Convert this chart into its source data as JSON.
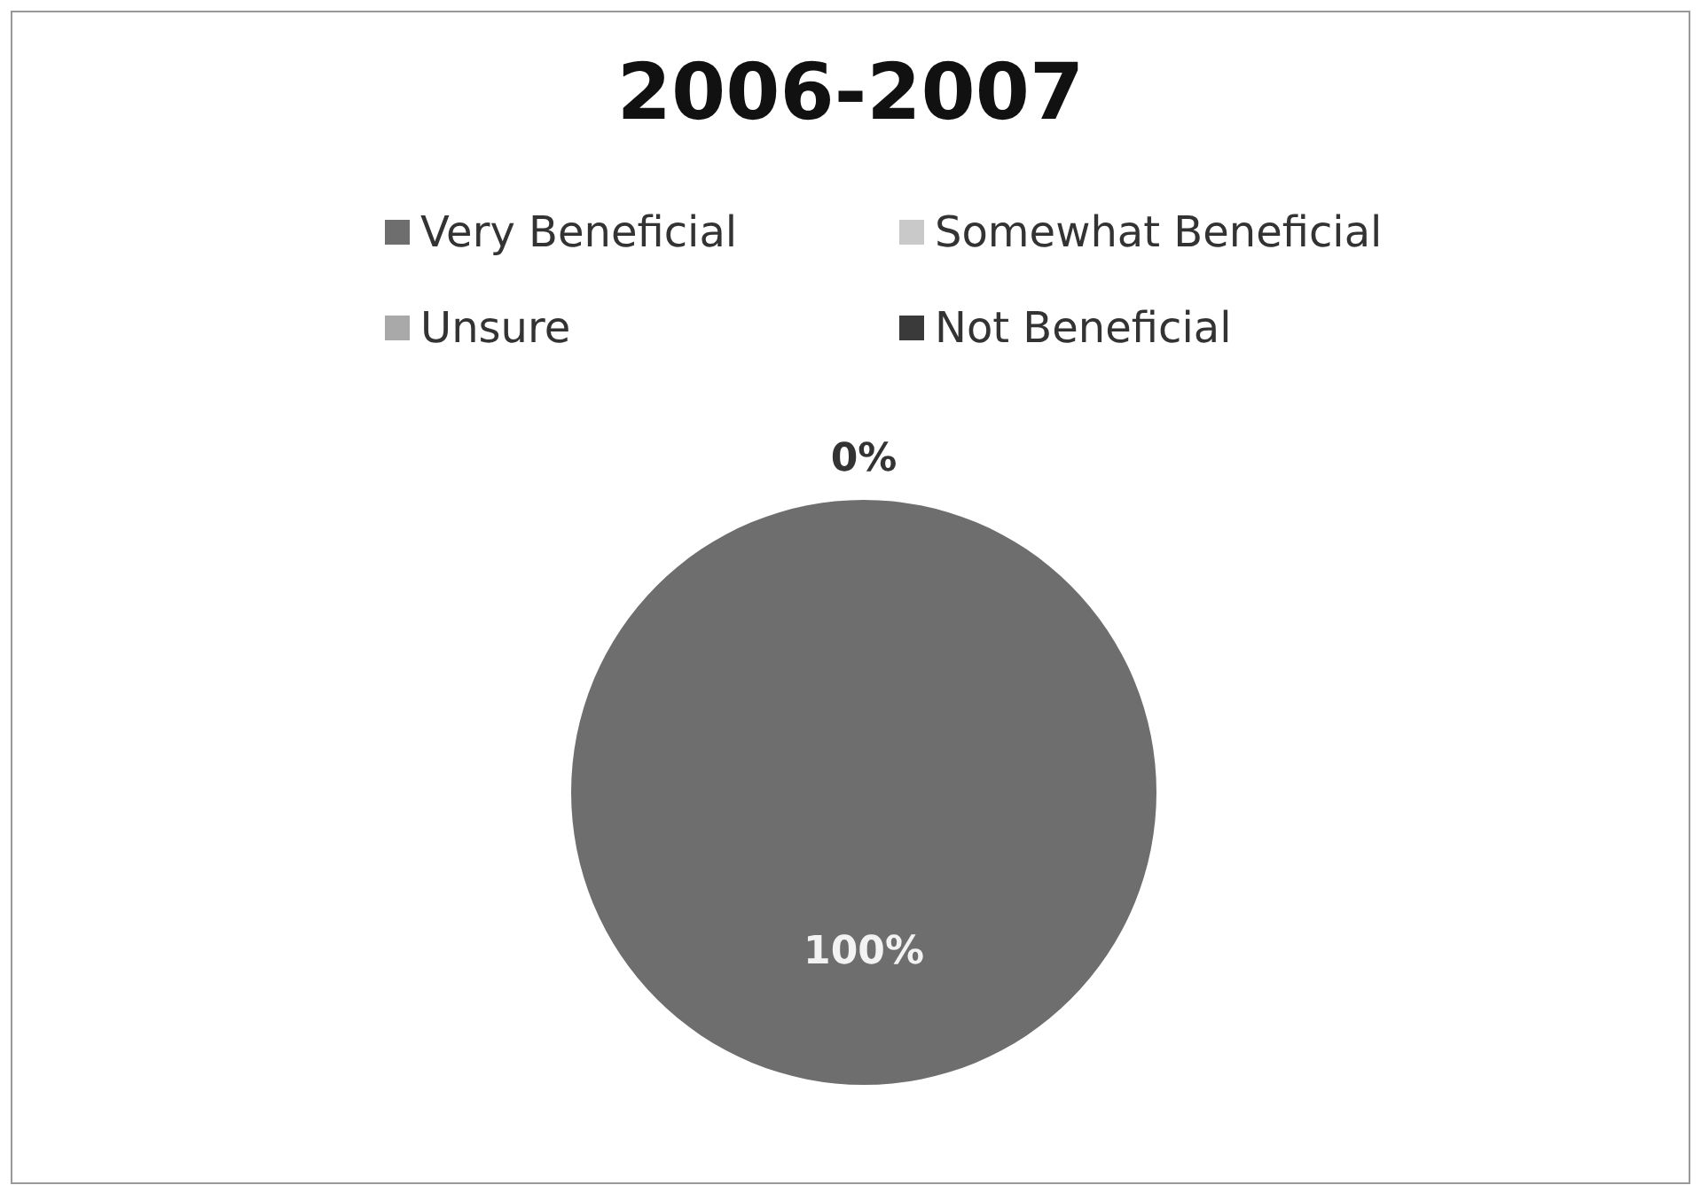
{
  "chart_data": {
    "type": "pie",
    "title": "2006-2007",
    "categories": [
      "Very Beneficial",
      "Somewhat Beneficial",
      "Unsure",
      "Not Beneficial"
    ],
    "values": [
      100,
      0,
      0,
      0
    ],
    "colors": [
      "#6e6e6e",
      "#c9c9c9",
      "#a9a9a9",
      "#3a3a3a"
    ],
    "value_labels": [
      "100%",
      "0%",
      null,
      null
    ],
    "legend": "top"
  }
}
